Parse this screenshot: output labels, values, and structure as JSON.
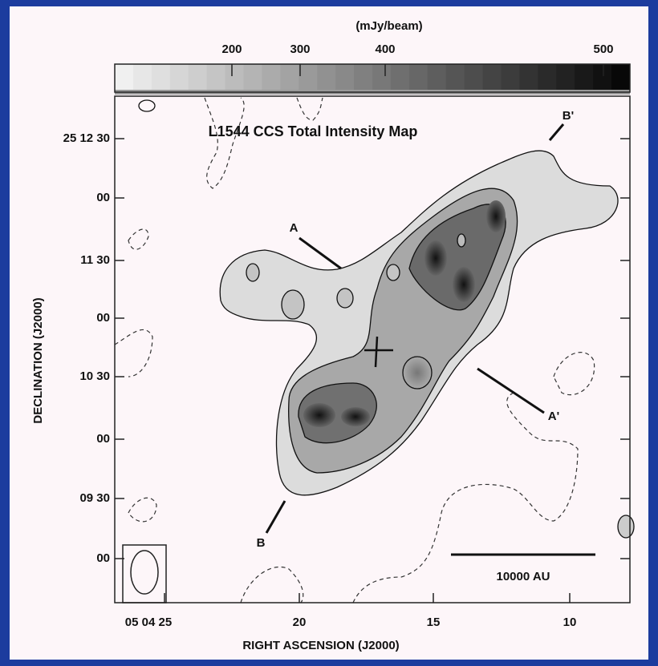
{
  "colorbar": {
    "label": "(mJy/beam)",
    "ticks": [
      "200",
      "300",
      "400",
      "500"
    ]
  },
  "map": {
    "title": "L1544 CCS Total Intensity Map",
    "annotations": [
      "A",
      "A'",
      "B",
      "B'"
    ],
    "scale_bar": "10000 AU"
  },
  "y_axis": {
    "label": "DECLINATION (J2000)",
    "ticks": [
      "25 12 30",
      "00",
      "11 30",
      "00",
      "10 30",
      "00",
      "09 30",
      "00"
    ]
  },
  "x_axis": {
    "label": "RIGHT ASCENSION (J2000)",
    "ticks": [
      "05 04 25",
      "20",
      "15",
      "10"
    ]
  }
}
